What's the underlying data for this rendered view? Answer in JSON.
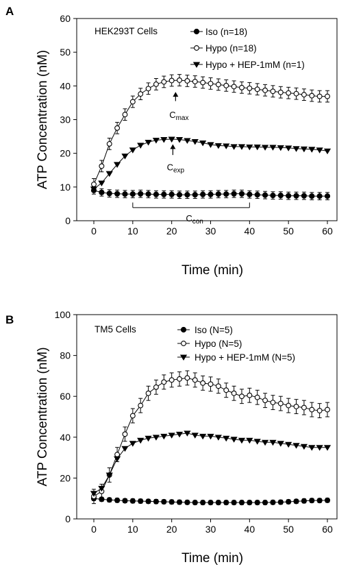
{
  "figure": {
    "panel_labels": [
      "A",
      "B"
    ]
  },
  "chart_data": [
    {
      "panel": "A",
      "type": "line",
      "title": "HEK293T Cells",
      "xlabel": "Time (min)",
      "ylabel": "ATP Concentration (nM)",
      "xlim": [
        0,
        60
      ],
      "ylim": [
        0,
        60
      ],
      "xticks": [
        0,
        10,
        20,
        30,
        40,
        50,
        60
      ],
      "yticks": [
        0,
        10,
        20,
        30,
        40,
        50,
        60
      ],
      "grid": false,
      "legend_position": "top-right",
      "series": [
        {
          "name": "Iso (n=18)",
          "marker": "filled-circle",
          "x": [
            0,
            2,
            4,
            6,
            8,
            10,
            12,
            14,
            16,
            18,
            20,
            22,
            24,
            26,
            28,
            30,
            32,
            34,
            36,
            38,
            40,
            42,
            44,
            46,
            48,
            50,
            52,
            54,
            56,
            58,
            60
          ],
          "y": [
            9.0,
            8.4,
            8.1,
            8.0,
            7.9,
            7.9,
            8.0,
            7.9,
            7.8,
            7.8,
            7.8,
            7.7,
            7.7,
            7.7,
            7.8,
            7.8,
            7.9,
            7.9,
            8.0,
            8.0,
            7.8,
            7.7,
            7.6,
            7.5,
            7.5,
            7.4,
            7.4,
            7.4,
            7.3,
            7.3,
            7.3
          ],
          "err": 1.1
        },
        {
          "name": "Hypo (n=18)",
          "marker": "open-circle",
          "x": [
            0,
            2,
            4,
            6,
            8,
            10,
            12,
            14,
            16,
            18,
            20,
            22,
            24,
            26,
            28,
            30,
            32,
            34,
            36,
            38,
            40,
            42,
            44,
            46,
            48,
            50,
            52,
            54,
            56,
            58,
            60
          ],
          "y": [
            10.8,
            16.2,
            22.8,
            27.5,
            31.5,
            35.3,
            37.6,
            39.2,
            40.5,
            41.2,
            41.6,
            41.7,
            41.5,
            41.3,
            41.0,
            40.7,
            40.4,
            40.1,
            39.8,
            39.5,
            39.3,
            39.0,
            38.7,
            38.4,
            38.1,
            37.9,
            37.7,
            37.4,
            37.1,
            36.9,
            36.9
          ],
          "err": 1.7
        },
        {
          "name": "Hypo + HEP-1mM (n=1)",
          "marker": "filled-triangle-down",
          "x": [
            0,
            2,
            4,
            6,
            8,
            10,
            12,
            14,
            16,
            18,
            20,
            22,
            24,
            26,
            28,
            30,
            32,
            34,
            36,
            38,
            40,
            42,
            44,
            46,
            48,
            50,
            52,
            54,
            56,
            58,
            60
          ],
          "y": [
            9.4,
            11.2,
            14.0,
            16.7,
            19.2,
            21.0,
            22.4,
            23.3,
            23.9,
            24.1,
            24.2,
            24.1,
            23.8,
            23.5,
            23.1,
            22.6,
            22.3,
            22.2,
            22.0,
            22.0,
            21.9,
            21.9,
            21.8,
            21.8,
            21.7,
            21.6,
            21.4,
            21.3,
            21.2,
            21.0,
            20.7
          ]
        }
      ],
      "annotations": {
        "cmax": {
          "base": "C",
          "sub": "max",
          "x": 21,
          "arrow_tip": 38.2,
          "arrow_base": 35.5,
          "label_y": 30.5
        },
        "cexp": {
          "base": "C",
          "sub": "exp",
          "x": 20.3,
          "arrow_tip": 22.7,
          "arrow_base": 19.5,
          "label_y": 15
        },
        "ccon": {
          "base": "C",
          "sub": "con",
          "x_from": 10,
          "x_to": 40,
          "bracket_y": 3.9,
          "tick_top": 5.4,
          "label_y": -0.2
        }
      }
    },
    {
      "panel": "B",
      "type": "line",
      "title": "TM5 Cells",
      "xlabel": "Time (min)",
      "ylabel": "ATP Concentration (nM)",
      "xlim": [
        0,
        60
      ],
      "ylim": [
        0,
        100
      ],
      "xticks": [
        0,
        10,
        20,
        30,
        40,
        50,
        60
      ],
      "yticks": [
        0,
        20,
        40,
        60,
        80,
        100
      ],
      "grid": false,
      "legend_position": "top-right",
      "series": [
        {
          "name": "Iso (N=5)",
          "marker": "filled-circle",
          "x": [
            0,
            2,
            4,
            6,
            8,
            10,
            12,
            14,
            16,
            18,
            20,
            22,
            24,
            26,
            28,
            30,
            32,
            34,
            36,
            38,
            40,
            42,
            44,
            46,
            48,
            50,
            52,
            54,
            56,
            58,
            60
          ],
          "y": [
            10.0,
            9.6,
            9.3,
            9.1,
            8.9,
            8.8,
            8.7,
            8.6,
            8.5,
            8.4,
            8.3,
            8.2,
            8.1,
            8.0,
            8.0,
            8.0,
            8.0,
            8.0,
            8.0,
            8.0,
            8.0,
            8.0,
            8.0,
            8.1,
            8.2,
            8.4,
            8.6,
            8.8,
            9.0,
            9.0,
            9.1
          ],
          "err": 1.0
        },
        {
          "name": "Hypo (N=5)",
          "marker": "open-circle",
          "x": [
            0,
            2,
            4,
            6,
            8,
            10,
            12,
            14,
            16,
            18,
            20,
            22,
            24,
            26,
            28,
            30,
            32,
            34,
            36,
            38,
            40,
            42,
            44,
            46,
            48,
            50,
            52,
            54,
            56,
            58,
            60
          ],
          "y": [
            11.0,
            13.5,
            21.5,
            31.5,
            41.5,
            50.5,
            55.5,
            61.5,
            64.5,
            67.0,
            68.0,
            68.5,
            69.0,
            68.0,
            66.5,
            66.0,
            65.0,
            63.0,
            61.5,
            60.0,
            60.5,
            59.5,
            58.0,
            57.0,
            56.5,
            55.5,
            55.0,
            54.5,
            53.5,
            53.0,
            53.5
          ],
          "err": 3.5
        },
        {
          "name": "Hypo + HEP-1mM (N=5)",
          "marker": "filled-triangle-down",
          "x": [
            0,
            2,
            4,
            6,
            8,
            10,
            12,
            14,
            16,
            18,
            20,
            22,
            24,
            26,
            28,
            30,
            32,
            34,
            36,
            38,
            40,
            42,
            44,
            46,
            48,
            50,
            52,
            54,
            56,
            58,
            60
          ],
          "y": [
            12.5,
            15.0,
            21.5,
            29.5,
            34.5,
            37.0,
            38.5,
            39.5,
            40.0,
            40.5,
            41.0,
            41.5,
            42.0,
            41.0,
            40.5,
            40.5,
            40.0,
            39.5,
            39.0,
            38.5,
            38.5,
            38.0,
            37.5,
            37.5,
            37.0,
            36.5,
            36.0,
            35.5,
            35.0,
            35.0,
            35.0
          ]
        }
      ]
    }
  ]
}
